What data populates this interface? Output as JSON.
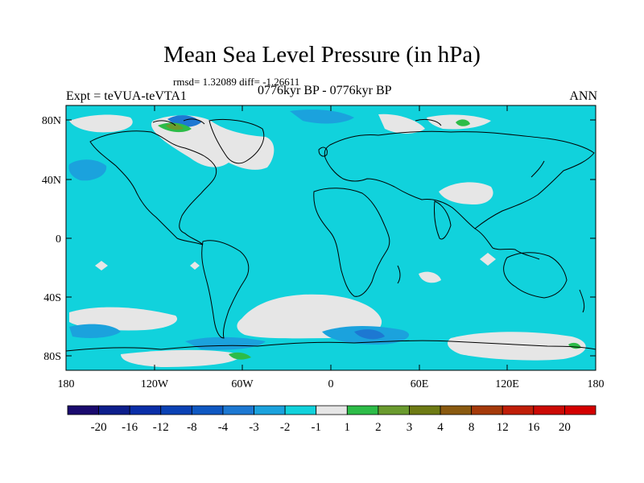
{
  "title": "Mean Sea Level Pressure (in hPa)",
  "stats_text": "rmsd= 1.32089 diff= -1.26611",
  "experiment": "Expt = teVUA-teVTA1",
  "period": "0776kyr BP - 0776kyr BP",
  "season": "ANN",
  "map": {
    "lat_ticks": [
      "80N",
      "40N",
      "0",
      "40S",
      "80S"
    ],
    "lon_ticks": [
      "180",
      "120W",
      "60W",
      "0",
      "60E",
      "120E",
      "180"
    ]
  },
  "colorbar": {
    "labels": [
      "-20",
      "-16",
      "-12",
      "-8",
      "-4",
      "-3",
      "-2",
      "-1",
      "1",
      "2",
      "3",
      "4",
      "8",
      "12",
      "16",
      "20"
    ],
    "colors": [
      "#1a0a6e",
      "#0d1e8c",
      "#0a2ea8",
      "#0b42b5",
      "#0f58c2",
      "#1d78d2",
      "#1ba2dd",
      "#11d2dc",
      "#e6e6e6",
      "#2dbc48",
      "#6a9b2e",
      "#6e7b14",
      "#8a5a10",
      "#a53a0a",
      "#c01e08",
      "#cc0a05",
      "#d40000"
    ]
  }
}
